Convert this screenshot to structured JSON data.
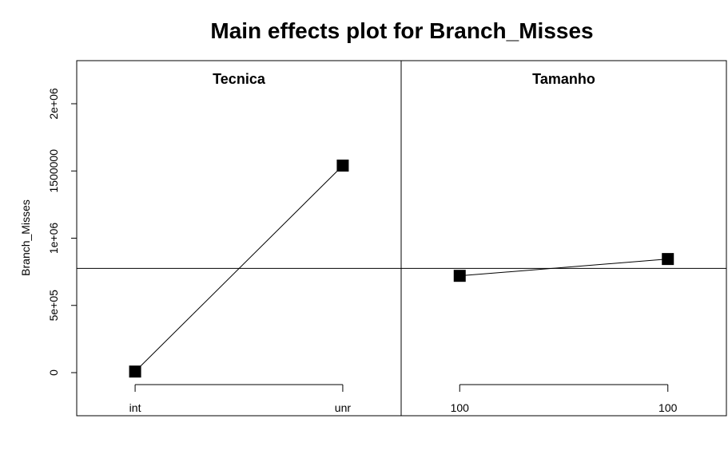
{
  "chart_data": {
    "type": "line",
    "title": "Main effects plot for Branch_Misses",
    "ylabel": "Branch_Misses",
    "ylim": [
      -160000,
      2320000
    ],
    "y_ticks": [
      0,
      500000,
      1000000,
      1500000,
      2000000
    ],
    "y_tick_labels": [
      "0",
      "5e+05",
      "1e+06",
      "1500000",
      "2e+06"
    ],
    "grand_mean": 775000,
    "panels": [
      {
        "name": "Tecnica",
        "categories": [
          "int",
          "unr"
        ],
        "values": [
          8000,
          1540000
        ]
      },
      {
        "name": "Tamanho",
        "categories": [
          "100",
          "100"
        ],
        "values": [
          720000,
          845000
        ]
      }
    ]
  }
}
